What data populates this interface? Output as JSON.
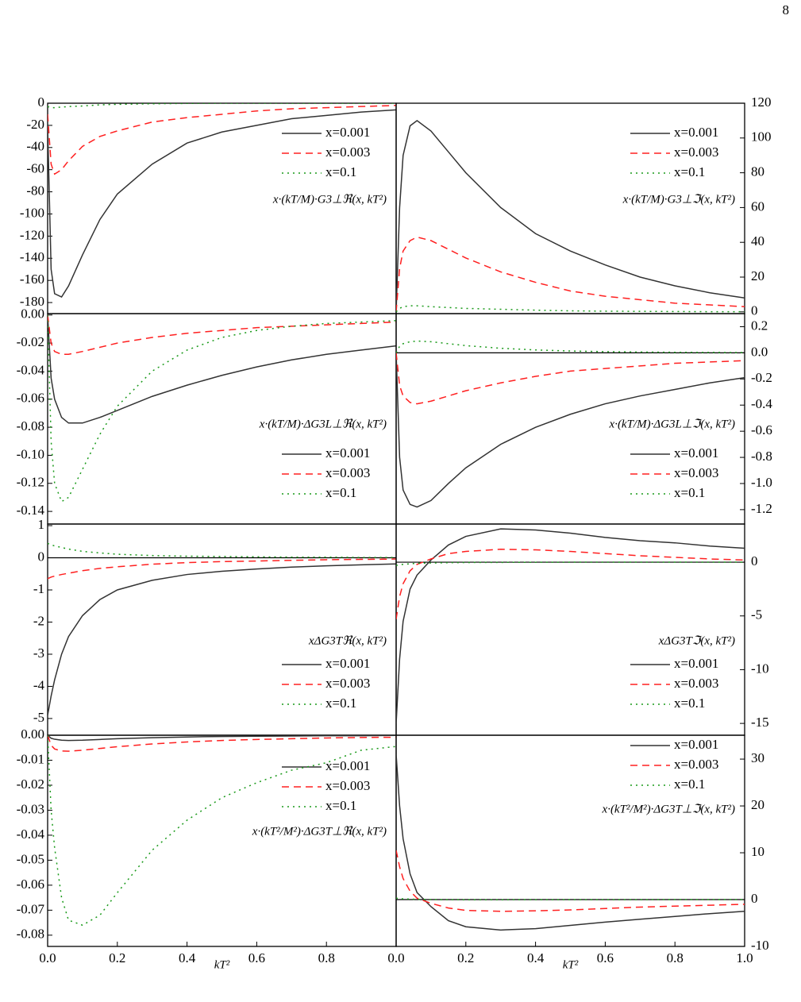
{
  "page_number": "8",
  "chart_data": [
    {
      "type": "line",
      "yaxis_side": "left",
      "zero_line": false,
      "label": "x·(kT/M)·G3⊥ℜ(x, kT²)",
      "x": [
        0,
        0.01,
        0.02,
        0.04,
        0.06,
        0.1,
        0.15,
        0.2,
        0.3,
        0.4,
        0.5,
        0.6,
        0.7,
        0.8,
        0.9,
        1.0
      ],
      "xlim": [
        0,
        1
      ],
      "ylim": [
        -190,
        0
      ],
      "yticks": [
        0,
        -20,
        -40,
        -60,
        -80,
        -100,
        -120,
        -140,
        -160,
        -180
      ],
      "series": [
        {
          "name": "x=0.001",
          "color": "#333333",
          "style": "solid",
          "values": [
            -20,
            -150,
            -172,
            -175,
            -165,
            -137,
            -105,
            -82,
            -55,
            -36,
            -26,
            -20,
            -14,
            -11,
            -8,
            -6
          ]
        },
        {
          "name": "x=0.003",
          "color": "#ff2020",
          "style": "dashed",
          "values": [
            -10,
            -55,
            -64,
            -60,
            -52,
            -39,
            -30,
            -25,
            -17,
            -13,
            -10,
            -7,
            -5,
            -4,
            -3,
            -2
          ]
        },
        {
          "name": "x=0.1",
          "color": "#1a9a1a",
          "style": "dotted",
          "values": [
            -3,
            -4,
            -4,
            -3.5,
            -3,
            -2.5,
            -1.5,
            -1,
            -0.5,
            -0.2,
            0,
            0,
            0,
            0,
            0,
            0
          ]
        }
      ]
    },
    {
      "type": "line",
      "yaxis_side": "right",
      "zero_line": false,
      "label": "x·(kT/M)·G3⊥ℑ(x, kT²)",
      "x": [
        0,
        0.01,
        0.02,
        0.04,
        0.06,
        0.1,
        0.15,
        0.2,
        0.3,
        0.4,
        0.5,
        0.6,
        0.7,
        0.8,
        0.9,
        1.0
      ],
      "xlim": [
        0,
        1
      ],
      "ylim": [
        -1,
        120
      ],
      "yticks": [
        0,
        20,
        40,
        60,
        80,
        100,
        120
      ],
      "series": [
        {
          "name": "x=0.001",
          "color": "#333333",
          "style": "solid",
          "values": [
            0,
            60,
            90,
            107,
            110,
            104,
            92,
            80,
            60,
            45,
            35,
            27,
            20,
            15,
            11,
            8
          ]
        },
        {
          "name": "x=0.003",
          "color": "#ff2020",
          "style": "dashed",
          "values": [
            0,
            25,
            35,
            41,
            43,
            41,
            36,
            31,
            23,
            17,
            12,
            9,
            7,
            5,
            4,
            3
          ]
        },
        {
          "name": "x=0.1",
          "color": "#1a9a1a",
          "style": "dotted",
          "values": [
            0,
            2,
            3,
            3.5,
            3.5,
            3,
            2.5,
            2,
            1.5,
            1,
            0.6,
            0.4,
            0.3,
            0.2,
            0.1,
            0.1
          ]
        }
      ]
    },
    {
      "type": "line",
      "yaxis_side": "left",
      "zero_line": false,
      "label": "x·(kT/M)·ΔG3L⊥ℜ(x, kT²)",
      "x": [
        0,
        0.01,
        0.02,
        0.04,
        0.06,
        0.1,
        0.15,
        0.2,
        0.3,
        0.4,
        0.5,
        0.6,
        0.7,
        0.8,
        0.9,
        1.0
      ],
      "xlim": [
        0,
        1
      ],
      "ylim": [
        -0.149,
        0.001
      ],
      "yticks": [
        {
          "value": 0,
          "label": "0.00"
        },
        -0.02,
        -0.04,
        -0.06,
        -0.08,
        {
          "value": -0.1,
          "label": "-0.10"
        },
        -0.12,
        -0.14
      ],
      "series": [
        {
          "name": "x=0.001",
          "color": "#333333",
          "style": "solid",
          "values": [
            0,
            -0.045,
            -0.06,
            -0.073,
            -0.077,
            -0.077,
            -0.073,
            -0.068,
            -0.058,
            -0.05,
            -0.043,
            -0.037,
            -0.032,
            -0.028,
            -0.025,
            -0.022
          ]
        },
        {
          "name": "x=0.003",
          "color": "#ff2020",
          "style": "dashed",
          "values": [
            0,
            -0.02,
            -0.026,
            -0.028,
            -0.028,
            -0.026,
            -0.023,
            -0.02,
            -0.016,
            -0.013,
            -0.011,
            -0.009,
            -0.008,
            -0.007,
            -0.006,
            -0.005
          ]
        },
        {
          "name": "x=0.1",
          "color": "#1a9a1a",
          "style": "dotted",
          "values": [
            0,
            -0.09,
            -0.12,
            -0.133,
            -0.13,
            -0.11,
            -0.085,
            -0.065,
            -0.04,
            -0.025,
            -0.016,
            -0.011,
            -0.008,
            -0.006,
            -0.005,
            -0.004
          ]
        }
      ]
    },
    {
      "type": "line",
      "yaxis_side": "right",
      "zero_line": true,
      "label": "x·(kT/M)·ΔG3L⊥ℑ(x, kT²)",
      "x": [
        0,
        0.01,
        0.02,
        0.04,
        0.06,
        0.1,
        0.15,
        0.2,
        0.3,
        0.4,
        0.5,
        0.6,
        0.7,
        0.8,
        0.9,
        1.0
      ],
      "xlim": [
        0,
        1
      ],
      "ylim": [
        -1.31,
        0.3
      ],
      "yticks": [
        0.2,
        {
          "value": 0,
          "label": "0.0"
        },
        -0.2,
        -0.4,
        -0.6,
        -0.8,
        {
          "value": -1,
          "label": "-1.0"
        },
        -1.2
      ],
      "series": [
        {
          "name": "x=0.001",
          "color": "#333333",
          "style": "solid",
          "values": [
            0,
            -0.8,
            -1.05,
            -1.16,
            -1.18,
            -1.13,
            -1,
            -0.88,
            -0.7,
            -0.57,
            -0.47,
            -0.39,
            -0.33,
            -0.28,
            -0.23,
            -0.19
          ]
        },
        {
          "name": "x=0.003",
          "color": "#ff2020",
          "style": "dashed",
          "values": [
            0,
            -0.25,
            -0.33,
            -0.38,
            -0.39,
            -0.37,
            -0.33,
            -0.29,
            -0.23,
            -0.18,
            -0.14,
            -0.12,
            -0.1,
            -0.08,
            -0.07,
            -0.06
          ]
        },
        {
          "name": "x=0.1",
          "color": "#1a9a1a",
          "style": "dotted",
          "values": [
            0,
            0.05,
            0.07,
            0.085,
            0.09,
            0.085,
            0.07,
            0.055,
            0.035,
            0.022,
            0.014,
            0.009,
            0.006,
            0.004,
            0.003,
            0.002
          ]
        }
      ]
    },
    {
      "type": "line",
      "yaxis_side": "left",
      "zero_line": true,
      "label": "xΔG3Tℜ(x, kT²)",
      "x": [
        0,
        0.01,
        0.02,
        0.04,
        0.06,
        0.1,
        0.15,
        0.2,
        0.3,
        0.4,
        0.5,
        0.6,
        0.7,
        0.8,
        0.9,
        1.0
      ],
      "xlim": [
        0,
        1
      ],
      "ylim": [
        -5.52,
        1.05
      ],
      "yticks": [
        1,
        0,
        -1,
        -2,
        -3,
        -4,
        -5
      ],
      "series": [
        {
          "name": "x=0.001",
          "color": "#333333",
          "style": "solid",
          "values": [
            -4.9,
            -4.3,
            -3.8,
            -3,
            -2.45,
            -1.8,
            -1.3,
            -1,
            -0.7,
            -0.52,
            -0.42,
            -0.35,
            -0.29,
            -0.25,
            -0.22,
            -0.19
          ]
        },
        {
          "name": "x=0.003",
          "color": "#ff2020",
          "style": "dashed",
          "values": [
            -0.65,
            -0.6,
            -0.57,
            -0.52,
            -0.48,
            -0.4,
            -0.33,
            -0.28,
            -0.2,
            -0.15,
            -0.12,
            -0.1,
            -0.08,
            -0.06,
            -0.05,
            -0.04
          ]
        },
        {
          "name": "x=0.1",
          "color": "#1a9a1a",
          "style": "dotted",
          "values": [
            0.45,
            0.4,
            0.37,
            0.32,
            0.27,
            0.2,
            0.15,
            0.11,
            0.07,
            0.05,
            0.04,
            0.03,
            0.02,
            0.02,
            0.01,
            0.01
          ]
        }
      ]
    },
    {
      "type": "line",
      "yaxis_side": "right",
      "zero_line": true,
      "label": "xΔG3Tℑ(x, kT²)",
      "x": [
        0,
        0.01,
        0.02,
        0.04,
        0.06,
        0.1,
        0.15,
        0.2,
        0.3,
        0.4,
        0.5,
        0.6,
        0.7,
        0.8,
        0.9,
        1.0
      ],
      "xlim": [
        0,
        1
      ],
      "ylim": [
        -16.1,
        3.55
      ],
      "yticks": [
        0,
        -5,
        -10,
        -15
      ],
      "series": [
        {
          "name": "x=0.001",
          "color": "#333333",
          "style": "solid",
          "values": [
            -15,
            -9,
            -5.5,
            -2.5,
            -1.2,
            0.2,
            1.6,
            2.4,
            3.1,
            3,
            2.7,
            2.3,
            2,
            1.8,
            1.5,
            1.3
          ]
        },
        {
          "name": "x=0.003",
          "color": "#ff2020",
          "style": "dashed",
          "values": [
            -5.3,
            -3.2,
            -2,
            -0.8,
            -0.2,
            0.3,
            0.8,
            1,
            1.2,
            1.15,
            1,
            0.8,
            0.6,
            0.45,
            0.3,
            0.2
          ]
        },
        {
          "name": "x=0.1",
          "color": "#1a9a1a",
          "style": "dotted",
          "values": [
            -0.3,
            -0.25,
            -0.2,
            -0.15,
            -0.1,
            -0.08,
            -0.05,
            -0.03,
            -0.02,
            -0.01,
            0,
            0,
            0,
            0,
            0,
            0
          ]
        }
      ]
    },
    {
      "type": "line",
      "yaxis_side": "left",
      "zero_line": false,
      "label": "x·(kT²/M²)·ΔG3T⊥ℜ(x, kT²)",
      "xlabel": "kT²",
      "x": [
        0,
        0.01,
        0.02,
        0.04,
        0.06,
        0.1,
        0.15,
        0.2,
        0.3,
        0.4,
        0.5,
        0.6,
        0.7,
        0.8,
        0.9,
        1.0
      ],
      "xlim": [
        0,
        1
      ],
      "xticks": [
        {
          "value": 0,
          "label": "0.0"
        },
        0.2,
        0.4,
        0.6,
        0.8
      ],
      "ylim": [
        -0.0845,
        0
      ],
      "yticks": [
        {
          "value": 0,
          "label": "0.00"
        },
        -0.01,
        -0.02,
        -0.03,
        -0.04,
        -0.05,
        -0.06,
        -0.07,
        -0.08
      ],
      "series": [
        {
          "name": "x=0.001",
          "color": "#333333",
          "style": "solid",
          "values": [
            0,
            -0.0012,
            -0.0016,
            -0.002,
            -0.0021,
            -0.002,
            -0.0017,
            -0.0014,
            -0.001,
            -0.0007,
            -0.0005,
            -0.0004,
            -0.0003,
            -0.0002,
            -0.0002,
            -0.0001
          ]
        },
        {
          "name": "x=0.003",
          "color": "#ff2020",
          "style": "dashed",
          "values": [
            0,
            -0.004,
            -0.0055,
            -0.0063,
            -0.0064,
            -0.006,
            -0.0053,
            -0.0046,
            -0.0035,
            -0.0027,
            -0.0021,
            -0.0017,
            -0.0014,
            -0.0011,
            -0.0009,
            -0.0008
          ]
        },
        {
          "name": "x=0.1",
          "color": "#1a9a1a",
          "style": "dotted",
          "values": [
            0,
            -0.03,
            -0.045,
            -0.065,
            -0.074,
            -0.076,
            -0.072,
            -0.063,
            -0.046,
            -0.034,
            -0.025,
            -0.019,
            -0.014,
            -0.011,
            -0.006,
            -0.0045
          ]
        }
      ]
    },
    {
      "type": "line",
      "yaxis_side": "right",
      "zero_line": true,
      "label": "x·(kT²/M²)·ΔG3T⊥ℑ(x, kT²)",
      "xlabel": "kT²",
      "x": [
        0,
        0.01,
        0.02,
        0.04,
        0.06,
        0.1,
        0.15,
        0.2,
        0.3,
        0.4,
        0.5,
        0.6,
        0.7,
        0.8,
        0.9,
        1.0
      ],
      "xlim": [
        0,
        1
      ],
      "xticks": [
        {
          "value": 0,
          "label": "0.0"
        },
        0.2,
        0.4,
        0.6,
        0.8,
        {
          "value": 1,
          "label": "1.0"
        }
      ],
      "ylim": [
        -10,
        35.1
      ],
      "yticks": [
        30,
        20,
        10,
        0,
        -10
      ],
      "series": [
        {
          "name": "x=0.001",
          "color": "#333333",
          "style": "solid",
          "values": [
            31,
            20,
            13,
            5.5,
            1.5,
            -1.5,
            -4.5,
            -5.8,
            -6.5,
            -6.2,
            -5.5,
            -4.8,
            -4.2,
            -3.6,
            -3,
            -2.5
          ]
        },
        {
          "name": "x=0.003",
          "color": "#ff2020",
          "style": "dashed",
          "values": [
            10.5,
            7,
            4.5,
            1.8,
            0.3,
            -0.8,
            -1.8,
            -2.3,
            -2.5,
            -2.4,
            -2.2,
            -1.9,
            -1.6,
            -1.4,
            -1.2,
            -1
          ]
        },
        {
          "name": "x=0.1",
          "color": "#1a9a1a",
          "style": "dotted",
          "values": [
            0.3,
            0.2,
            0.15,
            0.1,
            0.05,
            0,
            -0.02,
            -0.03,
            -0.03,
            -0.02,
            -0.02,
            -0.01,
            -0.01,
            0,
            0,
            0
          ]
        }
      ]
    }
  ]
}
